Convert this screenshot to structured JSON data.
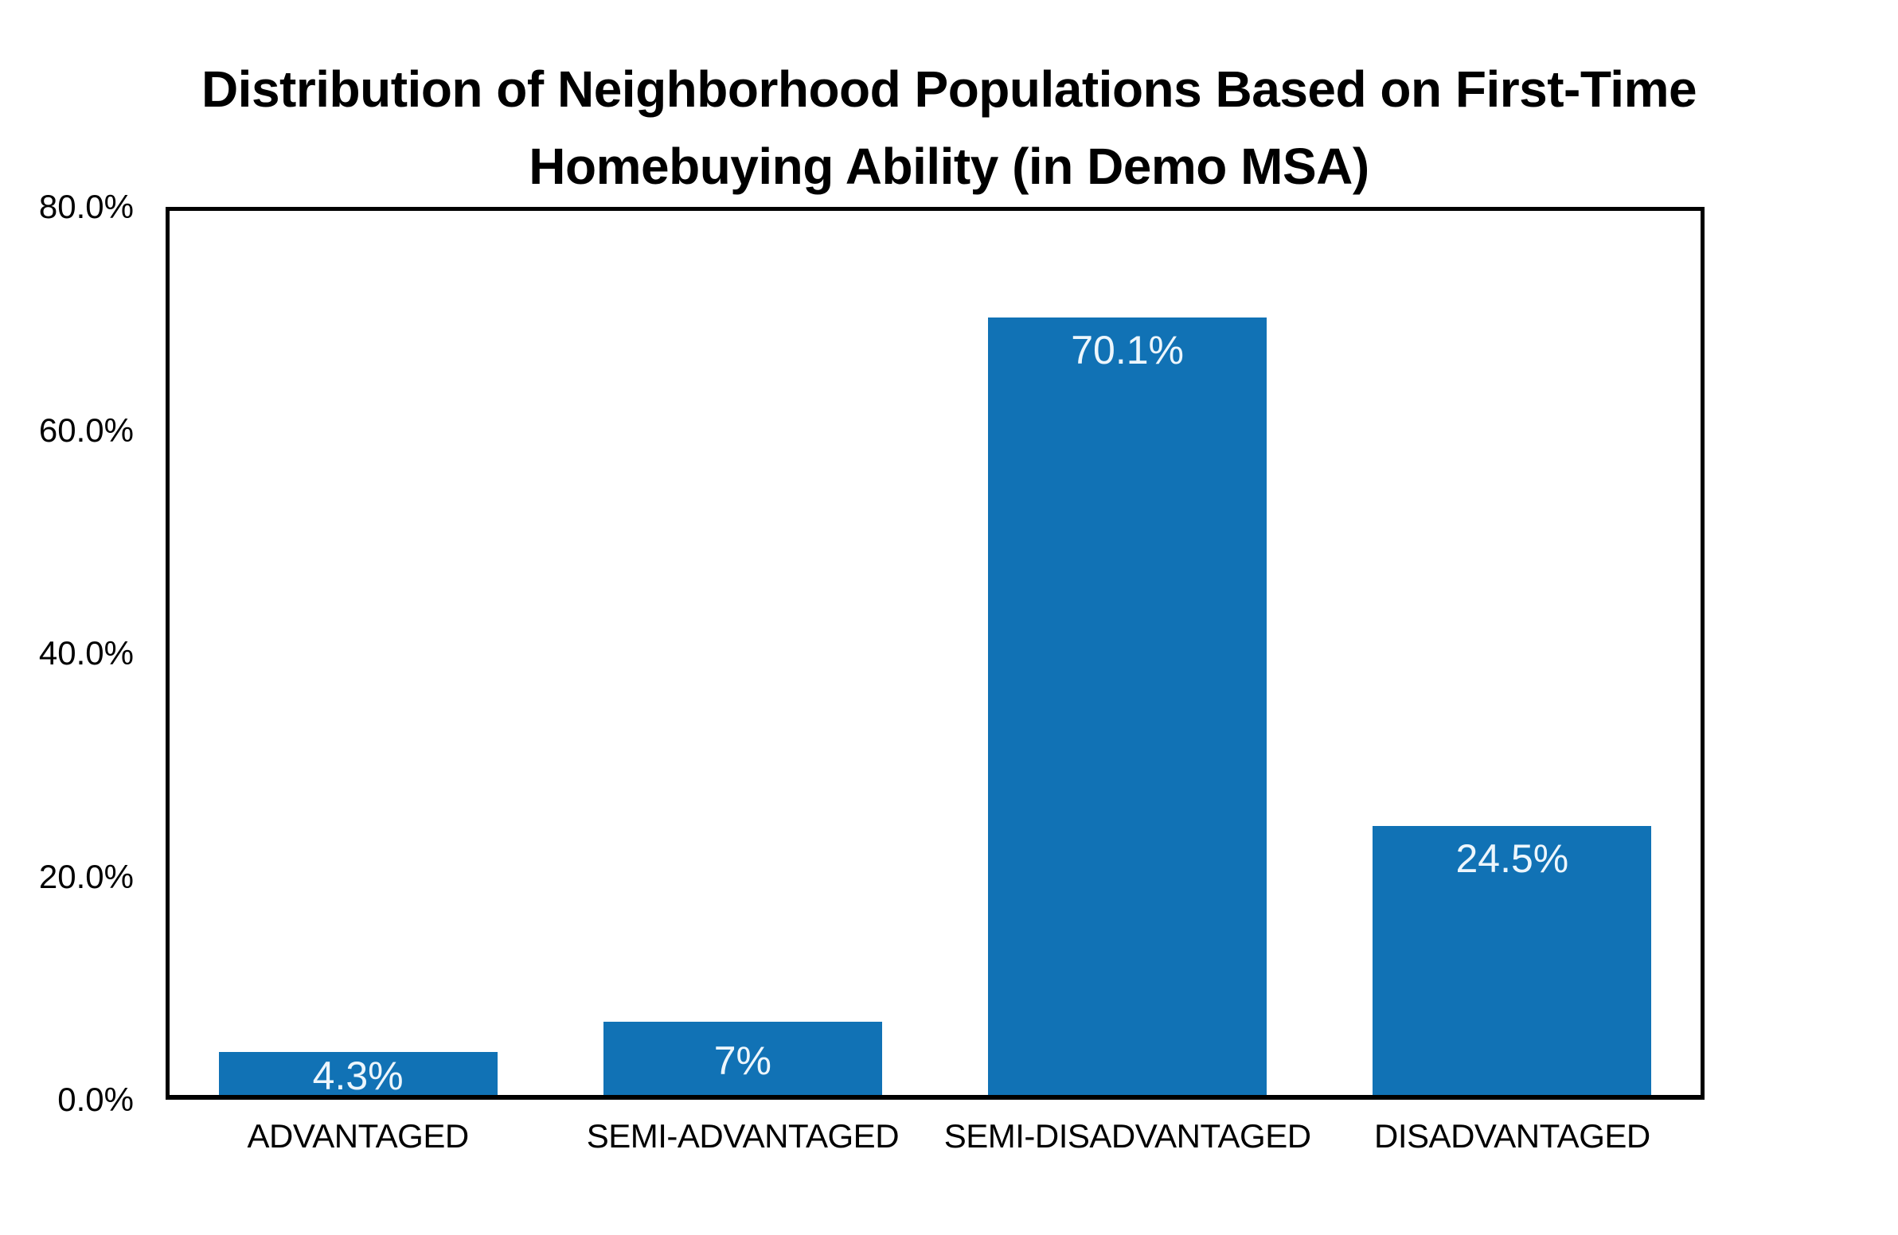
{
  "page": {
    "background_color": "#ffffff",
    "text_color": "#000000"
  },
  "chart_data": {
    "type": "bar",
    "title": "Distribution of Neighborhood Populations Based on First-Time Homebuying Ability (in Demo MSA)",
    "title_lines": [
      "Distribution of Neighborhood Populations Based on First-Time",
      "Homebuying Ability (in Demo MSA)"
    ],
    "categories": [
      "ADVANTAGED",
      "SEMI-ADVANTAGED",
      "SEMI-DISADVANTAGED",
      "DISADVANTAGED"
    ],
    "values": [
      4.3,
      7,
      70.1,
      24.5
    ],
    "value_labels": [
      "4.3%",
      "7%",
      "70.1%",
      "24.5%"
    ],
    "xlabel": "",
    "ylabel": "",
    "ylim": [
      0,
      80
    ],
    "yticks": [
      {
        "value": 80,
        "label": "80.0%"
      },
      {
        "value": 60,
        "label": "60.0%"
      },
      {
        "value": 40,
        "label": "40.0%"
      },
      {
        "value": 20,
        "label": "20.0%"
      },
      {
        "value": 0,
        "label": "0.0%"
      }
    ],
    "grid": false,
    "legend": "none",
    "bar_color": "#1172b5",
    "bar_label_color": "#edf6fc",
    "frame_color": "#000000"
  }
}
